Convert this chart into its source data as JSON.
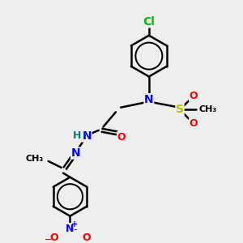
{
  "bg_color": "#eeeeee",
  "bond_color": "#000000",
  "atom_colors": {
    "Cl": "#00bb00",
    "N": "#0000ff",
    "O": "#ff0000",
    "S": "#bbbb00",
    "C": "#000000",
    "H": "#008080"
  },
  "bond_width": 1.8,
  "figsize": [
    3.0,
    3.0
  ],
  "dpi": 100,
  "xlim": [
    0,
    10
  ],
  "ylim": [
    0,
    10
  ]
}
